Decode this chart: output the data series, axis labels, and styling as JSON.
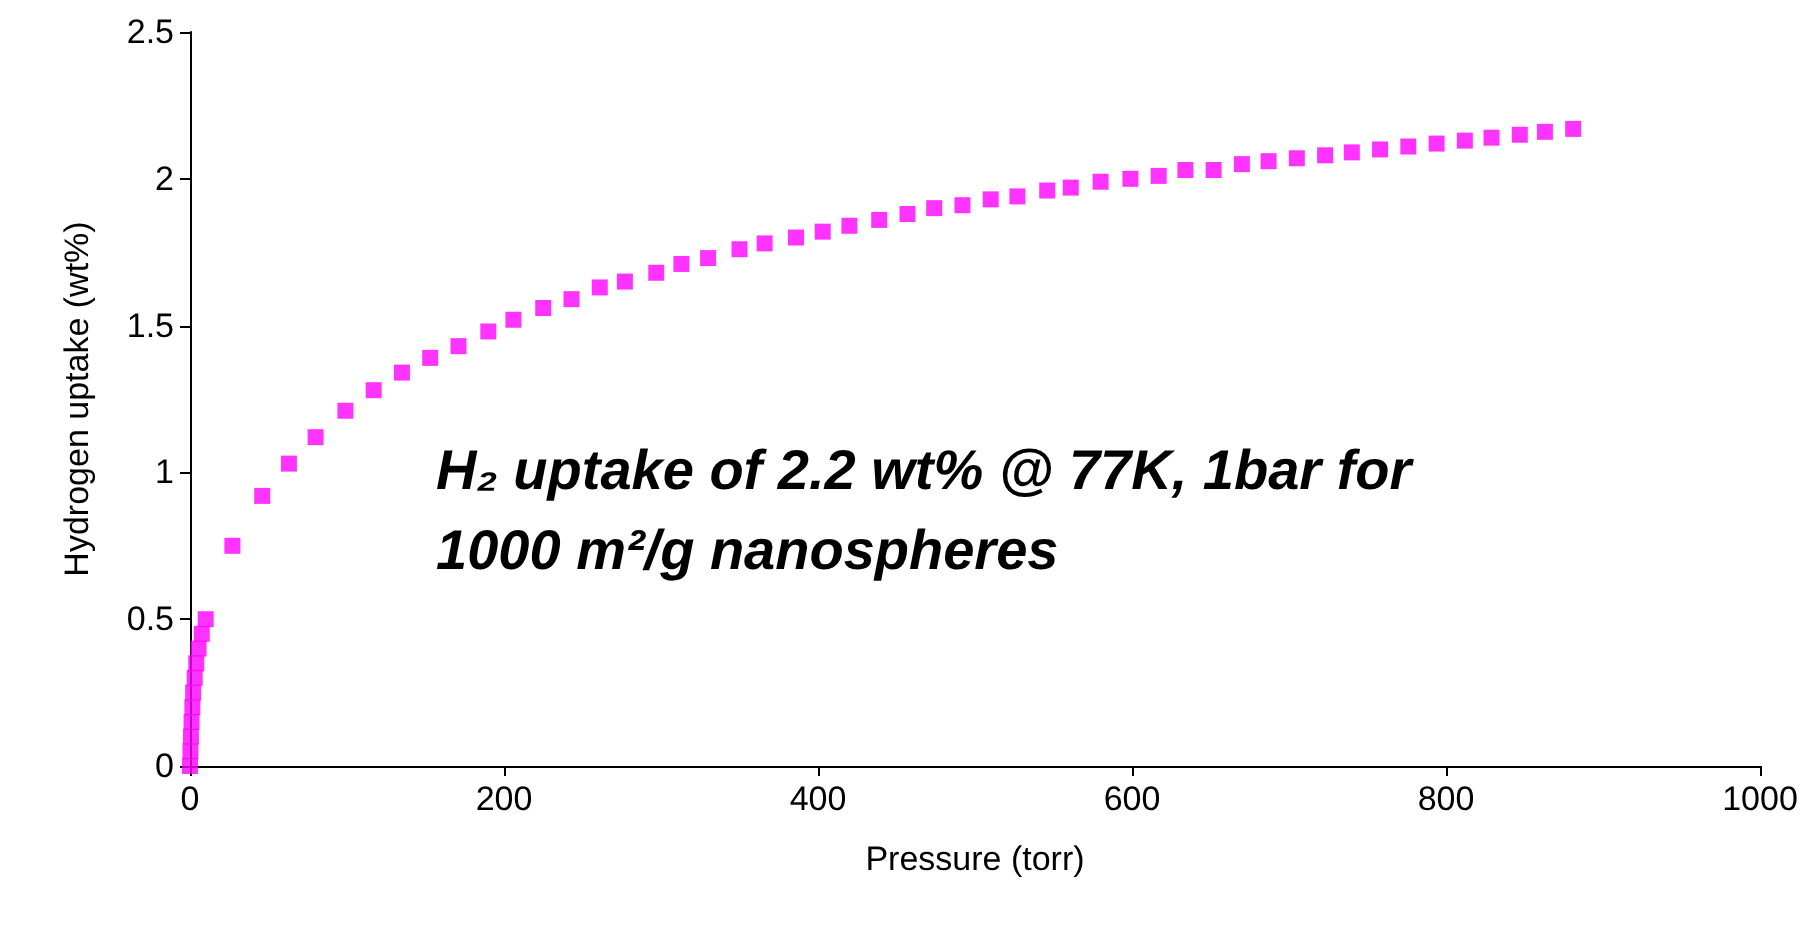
{
  "chart_data": {
    "type": "scatter",
    "xlabel": "Pressure (torr)",
    "ylabel": "Hydrogen uptake (wt%)",
    "x": [
      0,
      0.3,
      0.6,
      1,
      1.5,
      2,
      3,
      4,
      5.5,
      7.5,
      10,
      27,
      46,
      63,
      80,
      99,
      117,
      135,
      153,
      171,
      190,
      206,
      225,
      243,
      261,
      277,
      297,
      313,
      330,
      350,
      366,
      386,
      403,
      420,
      439,
      457,
      474,
      492,
      510,
      527,
      546,
      561,
      580,
      599,
      617,
      634,
      652,
      670,
      687,
      705,
      723,
      740,
      758,
      776,
      794,
      812,
      829,
      847,
      863,
      881
    ],
    "series": [
      {
        "color": "#ff00ff",
        "values": [
          0,
          0.05,
          0.1,
          0.15,
          0.2,
          0.25,
          0.3,
          0.35,
          0.4,
          0.45,
          0.5,
          0.75,
          0.92,
          1.03,
          1.12,
          1.21,
          1.28,
          1.34,
          1.39,
          1.43,
          1.48,
          1.52,
          1.56,
          1.59,
          1.63,
          1.65,
          1.68,
          1.71,
          1.73,
          1.76,
          1.78,
          1.8,
          1.82,
          1.84,
          1.86,
          1.88,
          1.9,
          1.91,
          1.93,
          1.94,
          1.96,
          1.97,
          1.99,
          2.0,
          2.01,
          2.03,
          2.03,
          2.05,
          2.06,
          2.07,
          2.08,
          2.09,
          2.1,
          2.11,
          2.12,
          2.13,
          2.14,
          2.15,
          2.16,
          2.17
        ]
      }
    ],
    "xlim": [
      0,
      1000
    ],
    "xticks": [
      0,
      200,
      400,
      600,
      800,
      1000
    ],
    "ylim": [
      0,
      2.5
    ],
    "yticks": [
      0,
      0.5,
      1,
      1.5,
      2,
      2.5
    ],
    "marker": "square",
    "grid": false,
    "annotations": [
      "H₂ uptake of 2.2 wt% @ 77K, 1bar for 1000 m²/g nanospheres"
    ]
  }
}
